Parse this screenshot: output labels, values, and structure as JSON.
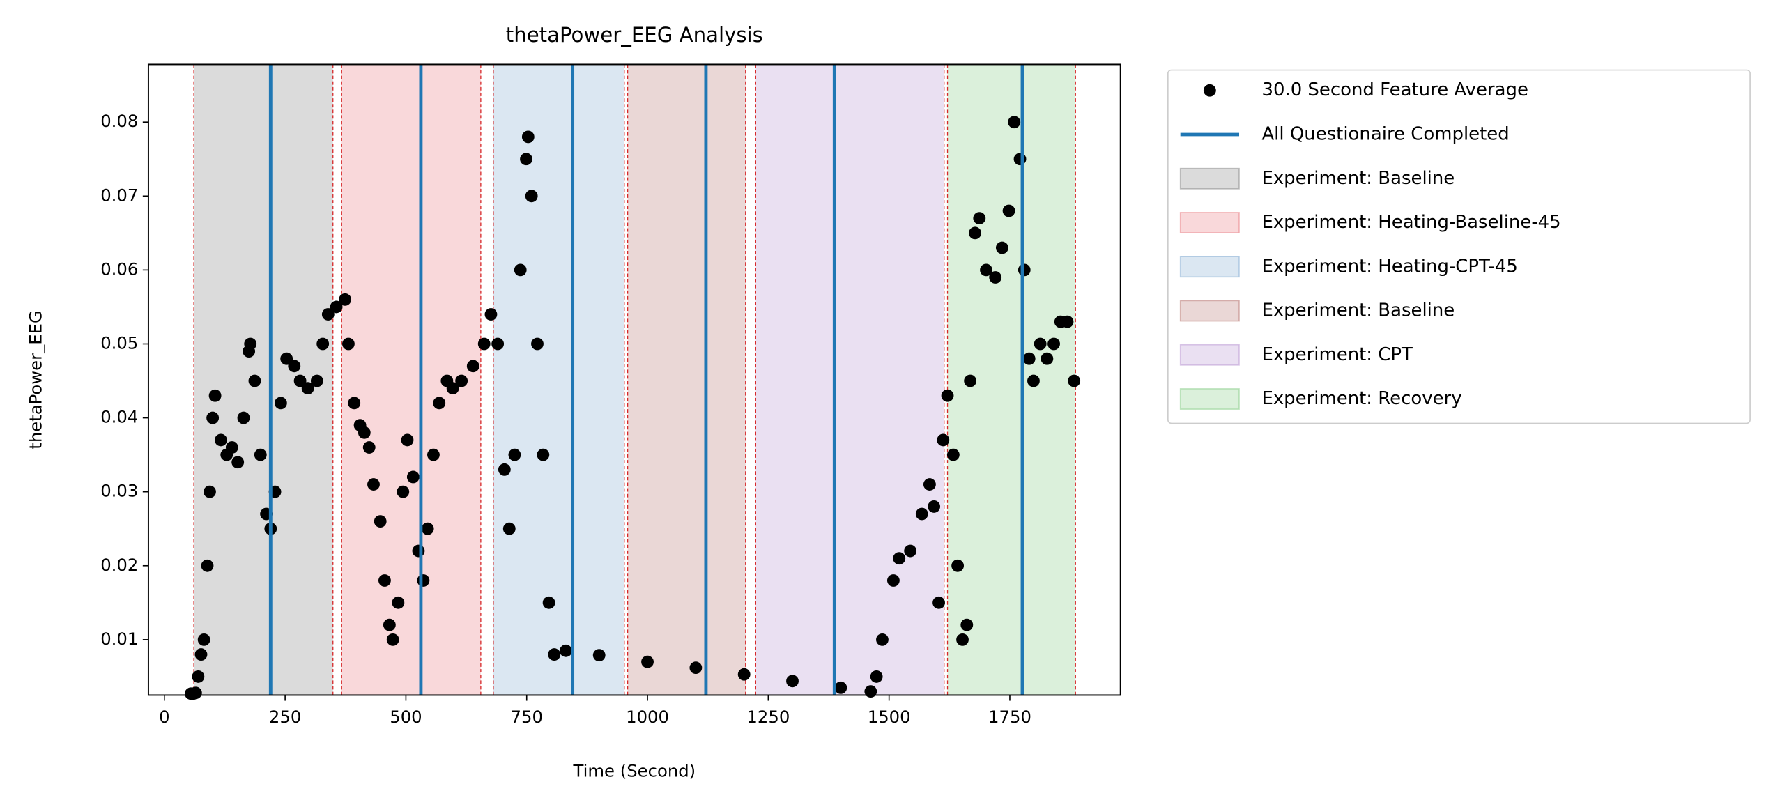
{
  "chart_data": {
    "type": "scatter",
    "title": "thetaPower_EEG Analysis",
    "xlabel": "Time (Second)",
    "ylabel": "thetaPower_EEG",
    "xlim": [
      -33,
      1979
    ],
    "ylim": [
      0.0025,
      0.0878
    ],
    "xticks": [
      0,
      250,
      500,
      750,
      1000,
      1250,
      1500,
      1750
    ],
    "yticks": [
      0.01,
      0.02,
      0.03,
      0.04,
      0.05,
      0.06,
      0.07,
      0.08
    ],
    "legend": "outside-right",
    "series": [
      {
        "name": "30.0 Second Feature Average",
        "color": "#000000",
        "x": [
          55,
          60,
          65,
          70,
          76,
          82,
          89,
          94,
          100,
          105,
          117,
          129,
          140,
          152,
          164,
          175,
          178,
          187,
          199,
          211,
          220,
          229,
          241,
          253,
          269,
          281,
          297,
          316,
          328,
          339,
          356,
          374,
          381,
          393,
          405,
          414,
          424,
          433,
          447,
          456,
          466,
          473,
          484,
          494,
          503,
          515,
          526,
          536,
          545,
          557,
          569,
          585,
          597,
          615,
          639,
          662,
          676,
          690,
          704,
          714,
          725,
          737,
          749,
          753,
          760,
          772,
          784,
          796,
          807,
          831,
          900,
          1000,
          1100,
          1200,
          1300,
          1400,
          1462,
          1474,
          1486,
          1509,
          1521,
          1544,
          1568,
          1584,
          1593,
          1603,
          1612,
          1621,
          1633,
          1642,
          1652,
          1661,
          1668,
          1678,
          1687,
          1701,
          1720,
          1734,
          1748,
          1759,
          1771,
          1780,
          1790,
          1799,
          1813,
          1827,
          1841,
          1855,
          1869,
          1883
        ],
        "values": [
          0.0027,
          0.0027,
          0.0028,
          0.005,
          0.008,
          0.01,
          0.02,
          0.03,
          0.04,
          0.043,
          0.037,
          0.035,
          0.036,
          0.034,
          0.04,
          0.049,
          0.05,
          0.045,
          0.035,
          0.027,
          0.025,
          0.03,
          0.042,
          0.048,
          0.047,
          0.045,
          0.044,
          0.045,
          0.05,
          0.054,
          0.055,
          0.056,
          0.05,
          0.042,
          0.039,
          0.038,
          0.036,
          0.031,
          0.026,
          0.018,
          0.012,
          0.01,
          0.015,
          0.03,
          0.037,
          0.032,
          0.022,
          0.018,
          0.025,
          0.035,
          0.042,
          0.045,
          0.044,
          0.045,
          0.047,
          0.05,
          0.054,
          0.05,
          0.033,
          0.025,
          0.035,
          0.06,
          0.075,
          0.078,
          0.07,
          0.05,
          0.035,
          0.015,
          0.008,
          0.0085,
          0.0079,
          0.007,
          0.0062,
          0.0053,
          0.0044,
          0.0035,
          0.003,
          0.005,
          0.01,
          0.018,
          0.021,
          0.022,
          0.027,
          0.031,
          0.028,
          0.015,
          0.037,
          0.043,
          0.035,
          0.02,
          0.01,
          0.012,
          0.045,
          0.065,
          0.067,
          0.06,
          0.059,
          0.063,
          0.068,
          0.08,
          0.075,
          0.06,
          0.048,
          0.045,
          0.05,
          0.048,
          0.05,
          0.053,
          0.053,
          0.045
        ]
      }
    ],
    "vlines": {
      "name": "All Questionaire Completed",
      "color": "#1f77b4",
      "x": [
        220,
        531,
        845,
        1121,
        1387,
        1776
      ]
    },
    "spans": [
      {
        "name": "Experiment: Baseline",
        "color": "#7f7f7f",
        "range": [
          61,
          349
        ]
      },
      {
        "name": "Experiment: Heating-Baseline-45",
        "color": "#e8737a",
        "range": [
          367,
          655
        ]
      },
      {
        "name": "Experiment: Heating-CPT-45",
        "color": "#7fa9d2",
        "range": [
          681,
          952
        ]
      },
      {
        "name": "Experiment: Baseline",
        "color": "#b5716b",
        "range": [
          959,
          1203
        ]
      },
      {
        "name": "Experiment: CPT",
        "color": "#b58fcf",
        "range": [
          1224,
          1614
        ]
      },
      {
        "name": "Experiment: Recovery",
        "color": "#7fc97f",
        "range": [
          1621,
          1886
        ]
      }
    ],
    "edge_color": "#d62728"
  }
}
